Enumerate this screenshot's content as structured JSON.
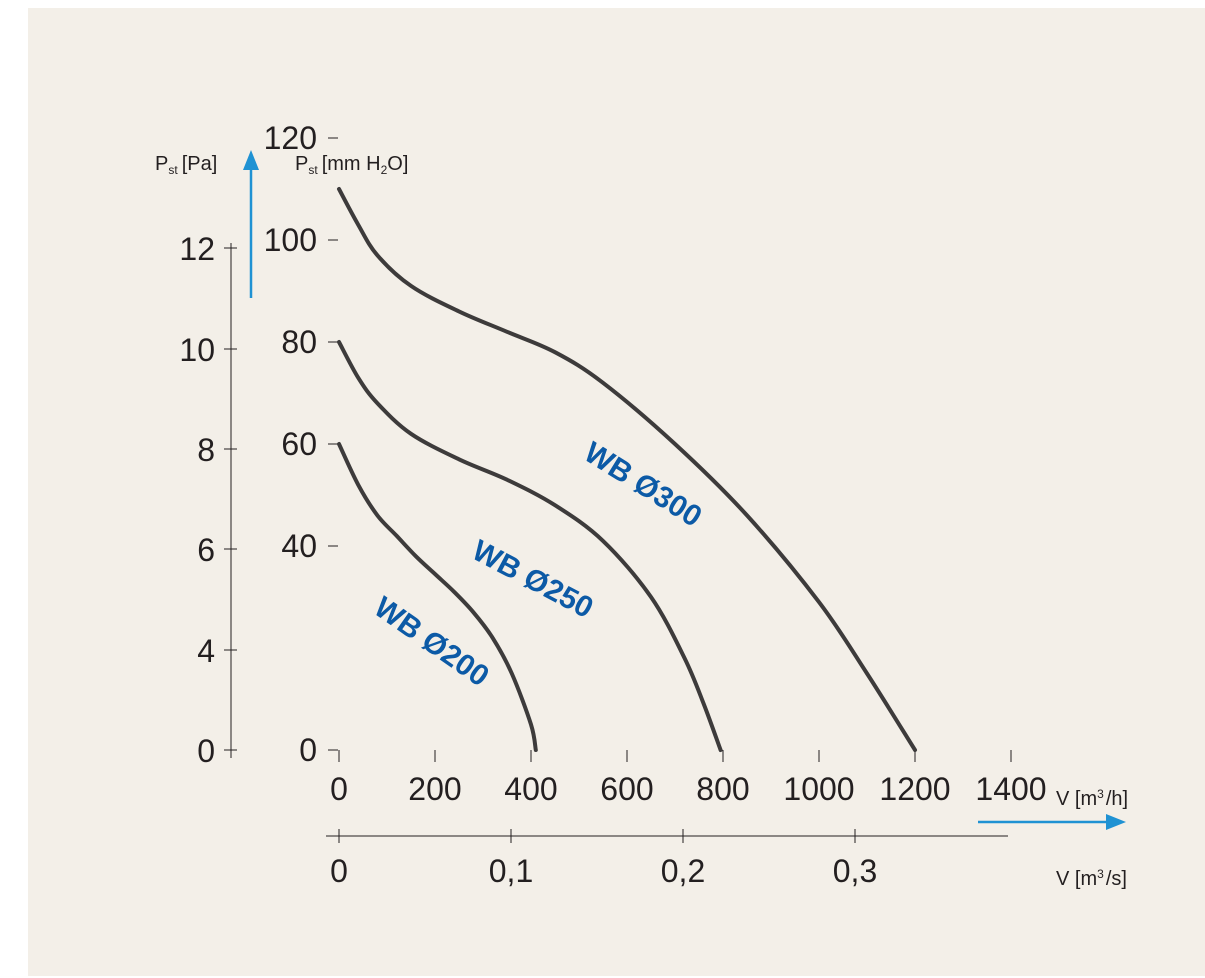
{
  "colors": {
    "background": "#f3efe8",
    "axis": "#231f20",
    "curve": "#3d3b3b",
    "label": "#0c5aa6",
    "arrow": "#1f92d3"
  },
  "axis_labels": {
    "pa_main": "P",
    "pa_sub": "st",
    "pa_unit": "[Pa]",
    "mm_main": "P",
    "mm_sub": "st",
    "mm_unit_a": "[mm H",
    "mm_unit_sub": "2",
    "mm_unit_b": "O]",
    "flow_h_main": "V [m",
    "flow_h_sup": "3",
    "flow_h_end": "/h]",
    "flow_s_main": "V [m",
    "flow_s_sup": "3",
    "flow_s_end": "/s]"
  },
  "chart_data": {
    "type": "line",
    "title": "",
    "x_axes": {
      "primary": {
        "label": "V [m³/h]",
        "ticks": [
          "0",
          "200",
          "400",
          "600",
          "800",
          "1000",
          "1200",
          "1400"
        ],
        "range": [
          0,
          1400
        ]
      },
      "secondary": {
        "label": "V [m³/s]",
        "ticks": [
          "0",
          "0,1",
          "0,2",
          "0,3"
        ]
      }
    },
    "y_axes": {
      "left": {
        "label": "Pst [Pa]",
        "ticks": [
          "0",
          "4",
          "6",
          "8",
          "10",
          "12"
        ]
      },
      "inner": {
        "label": "Pst [mm H2O]",
        "ticks": [
          "0",
          "40",
          "60",
          "80",
          "100",
          "120"
        ],
        "range": [
          0,
          120
        ]
      }
    },
    "grid": false,
    "series": [
      {
        "name": "WB Ø200",
        "x": [
          0,
          40,
          80,
          120,
          160,
          200,
          240,
          280,
          320,
          360,
          400,
          410
        ],
        "y": [
          60,
          52,
          46,
          42,
          38,
          34.5,
          31,
          27,
          22,
          15,
          5,
          0
        ]
      },
      {
        "name": "WB Ø250",
        "x": [
          0,
          40,
          80,
          150,
          250,
          350,
          450,
          550,
          650,
          720,
          760,
          795
        ],
        "y": [
          80,
          73,
          68,
          62,
          57,
          53,
          48,
          41,
          30,
          18,
          9,
          0
        ]
      },
      {
        "name": "WB Ø300",
        "x": [
          0,
          40,
          80,
          150,
          250,
          350,
          450,
          550,
          700,
          850,
          1000,
          1100,
          1200
        ],
        "y": [
          110,
          103,
          97,
          91,
          86,
          82,
          78,
          72,
          60,
          46,
          29,
          15,
          0
        ]
      }
    ]
  }
}
